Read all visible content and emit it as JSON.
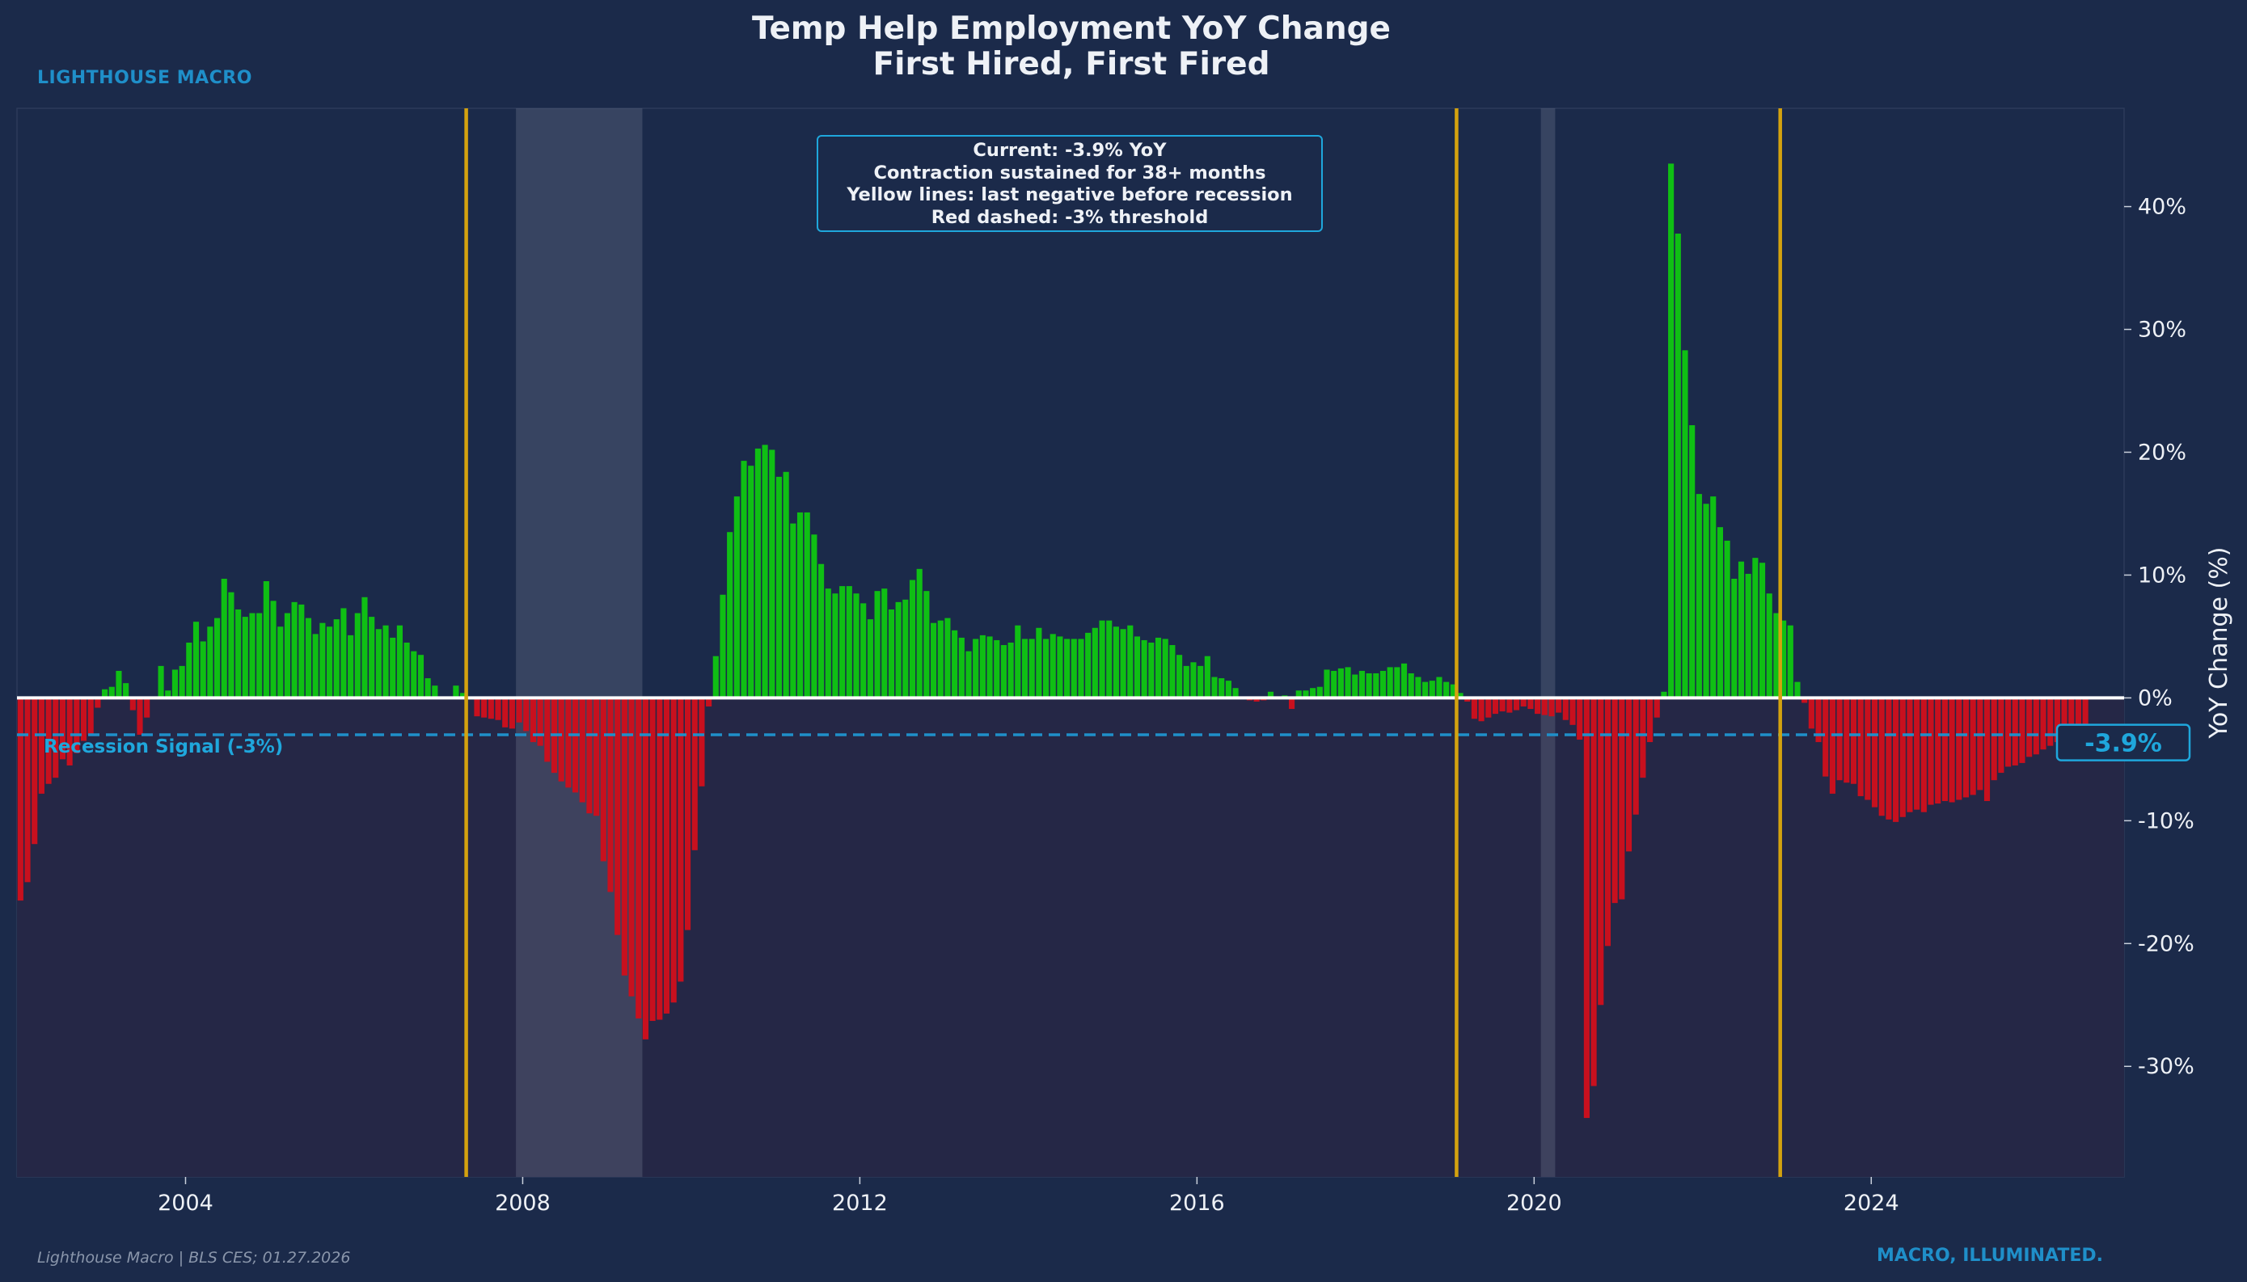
{
  "header": {
    "title_line1": "Temp Help Employment YoY Change",
    "title_line2": "First Hired, First Fired",
    "brand": "LIGHTHOUSE MACRO"
  },
  "footer": {
    "source": "Lighthouse Macro | BLS CES; 01.27.2026",
    "tagline": "MACRO, ILLUMINATED."
  },
  "annotation_box": {
    "lines": [
      "Current: -3.9% YoY",
      "Contraction sustained for 38+ months",
      "Yellow lines: last negative before recession",
      "Red dashed: -3% threshold"
    ]
  },
  "colors": {
    "background": "#1b2a4a",
    "positive_bar": "#0fbf14",
    "negative_bar": "#c8101e",
    "recession_line": "#d4a20f",
    "threshold_line": "#1f8fc9",
    "accent": "#1fa7dc"
  },
  "chart_data": {
    "type": "bar",
    "ylabel": "YoY Change (%)",
    "x_range": [
      2002.0,
      2027.0
    ],
    "ylim": [
      -39,
      48
    ],
    "y_ticks": [
      -30,
      -20,
      -10,
      0,
      10,
      20,
      30,
      40
    ],
    "y_tick_labels": [
      "-30%",
      "-20%",
      "-10%",
      "0%",
      "10%",
      "20%",
      "30%",
      "40%"
    ],
    "x_ticks": [
      2004,
      2008,
      2012,
      2016,
      2020,
      2024
    ],
    "x_tick_labels": [
      "2004",
      "2008",
      "2012",
      "2016",
      "2020",
      "2024"
    ],
    "threshold": {
      "value": -3,
      "label": "Recession Signal (-3%)"
    },
    "current": {
      "value": -3.9,
      "label": "-3.9%"
    },
    "recession_shading": [
      [
        2007.92,
        2009.42
      ],
      [
        2020.08,
        2020.25
      ]
    ],
    "signal_lines": [
      2007.33,
      2019.08,
      2022.92
    ],
    "series": [
      {
        "start": 2002.0,
        "step": 0.08333,
        "values": [
          -16.5,
          -15.0,
          -11.9,
          -7.8,
          -7.0,
          -6.5,
          -5.0,
          -5.5,
          -4.5,
          -3.5,
          -3.0,
          -0.8,
          0.7,
          0.9,
          2.2,
          1.2,
          -1.0,
          -3.0,
          -1.6,
          0.0,
          2.6,
          0.6,
          2.3,
          2.6,
          4.5,
          6.2,
          4.6,
          5.8,
          6.5,
          9.7,
          8.6,
          7.2,
          6.6,
          6.9,
          6.9,
          9.5,
          7.9,
          5.8,
          6.9,
          7.8,
          7.6,
          6.5,
          5.2,
          6.1,
          5.8,
          6.4,
          7.3,
          5.1,
          6.9,
          8.2,
          6.6,
          5.6,
          5.9,
          4.9,
          5.9,
          4.5,
          3.8,
          3.5,
          1.6,
          1.0,
          0.0,
          0.0,
          1.0,
          0.4,
          0.0,
          -1.5,
          -1.6,
          -1.7,
          -1.8,
          -2.4,
          -2.5,
          -2.0,
          -2.7,
          -3.6,
          -3.9,
          -5.2,
          -6.1,
          -6.8,
          -7.3,
          -7.7,
          -8.5,
          -9.4,
          -9.6,
          -13.3,
          -15.8,
          -19.3,
          -22.6,
          -24.3,
          -26.1,
          -27.8,
          -26.3,
          -26.2,
          -25.7,
          -24.8,
          -23.1,
          -18.9,
          -12.4,
          -7.2,
          -0.7,
          3.4,
          8.4,
          13.5,
          16.4,
          19.3,
          18.9,
          20.3,
          20.6,
          20.2,
          18.0,
          18.4,
          14.2,
          15.1,
          15.1,
          13.3,
          10.9,
          8.9,
          8.5,
          9.1,
          9.1,
          8.5,
          7.7,
          6.4,
          8.7,
          8.9,
          7.2,
          7.8,
          8.0,
          9.6,
          10.5,
          8.7,
          6.1,
          6.3,
          6.5,
          5.5,
          4.9,
          3.8,
          4.8,
          5.1,
          5.0,
          4.7,
          4.3,
          4.5,
          5.9,
          4.8,
          4.8,
          5.7,
          4.8,
          5.2,
          5.0,
          4.8,
          4.8,
          4.8,
          5.3,
          5.7,
          6.3,
          6.3,
          5.8,
          5.6,
          5.9,
          5.0,
          4.7,
          4.5,
          4.9,
          4.8,
          4.3,
          3.5,
          2.6,
          2.9,
          2.6,
          3.4,
          1.7,
          1.6,
          1.4,
          0.8,
          -0.1,
          -0.2,
          -0.3,
          -0.2,
          0.5,
          0.0,
          0.2,
          -0.9,
          0.6,
          0.6,
          0.8,
          0.9,
          2.3,
          2.2,
          2.4,
          2.5,
          1.9,
          2.2,
          2.0,
          2.0,
          2.2,
          2.5,
          2.5,
          2.8,
          2.0,
          1.7,
          1.3,
          1.4,
          1.7,
          1.3,
          1.1,
          0.4,
          -0.3,
          -1.7,
          -1.9,
          -1.6,
          -1.3,
          -1.1,
          -1.2,
          -1.0,
          -0.7,
          -0.9,
          -1.3,
          -1.4,
          -1.5,
          -1.2,
          -1.8,
          -2.2,
          -3.4,
          -34.2,
          -31.6,
          -25.0,
          -20.2,
          -16.7,
          -16.4,
          -12.5,
          -9.5,
          -6.5,
          -3.6,
          -1.6,
          0.5,
          43.5,
          37.8,
          28.3,
          22.2,
          16.6,
          15.8,
          16.4,
          13.9,
          12.8,
          9.7,
          11.1,
          10.1,
          11.4,
          11.0,
          8.5,
          6.9,
          6.3,
          5.9,
          1.3,
          -0.4,
          -2.5,
          -3.6,
          -6.4,
          -7.8,
          -6.7,
          -6.9,
          -7.0,
          -8.0,
          -8.3,
          -8.9,
          -9.6,
          -9.9,
          -10.1,
          -9.7,
          -9.3,
          -9.1,
          -9.3,
          -8.7,
          -8.6,
          -8.4,
          -8.5,
          -8.3,
          -8.1,
          -7.9,
          -7.5,
          -8.4,
          -6.7,
          -6.1,
          -5.6,
          -5.5,
          -5.3,
          -4.8,
          -4.6,
          -4.2,
          -3.9,
          -3.6,
          -3.0,
          -2.8,
          -3.4,
          -3.9
        ]
      }
    ]
  }
}
